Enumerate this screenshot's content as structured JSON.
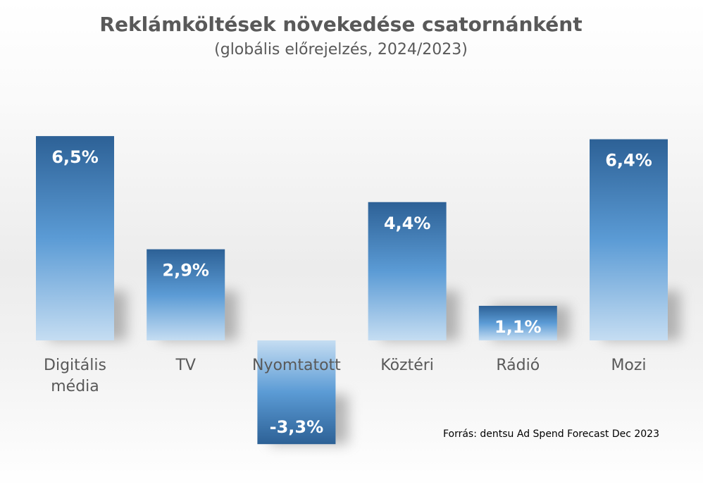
{
  "title": "Reklámköltések növekedése csatornánként",
  "subtitle": "(globális előrejelzés, 2024/2023)",
  "source": "Forrás: dentsu Ad Spend Forecast Dec 2023",
  "colors": {
    "bar_dark": "#2d6196",
    "bar_mid": "#5b9bd5",
    "bar_light": "#c5ddf2",
    "value_text": "#ffffff",
    "category_text": "#595959"
  },
  "chart_data": {
    "type": "bar",
    "categories": [
      [
        "Digitális",
        "média"
      ],
      [
        "TV"
      ],
      [
        "Nyomtatott"
      ],
      [
        "Köztéri"
      ],
      [
        "Rádió"
      ],
      [
        "Mozi"
      ]
    ],
    "values": [
      6.5,
      2.9,
      -3.3,
      4.4,
      1.1,
      6.4
    ],
    "value_labels": [
      "6,5%",
      "2,9%",
      "-3,3%",
      "4,4%",
      "1,1%",
      "6,4%"
    ],
    "unit": "%"
  }
}
